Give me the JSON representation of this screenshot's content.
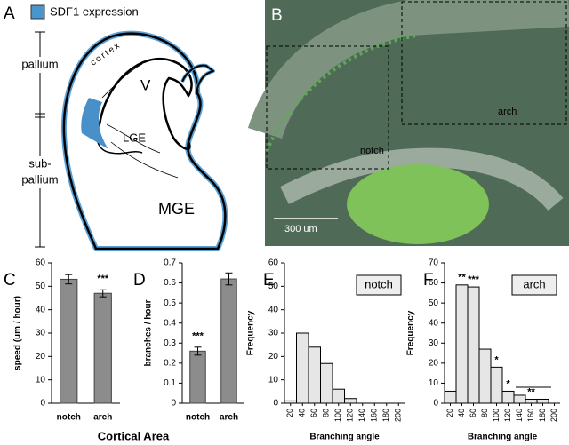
{
  "diagram": {
    "panel_label": "A",
    "legend": "SDF1 expression",
    "pallium": "pallium",
    "sub1": "sub-",
    "sub2": "pallium",
    "cortex": "cortex",
    "ventricle": "V",
    "lge": "LGE",
    "mge": "MGE"
  },
  "image": {
    "panel_label": "B",
    "notch": "notch",
    "arch": "arch",
    "scale": "300 um"
  },
  "shared_xlabel": "Cortical Area",
  "chart_data": [
    {
      "type": "bar",
      "panel_label": "C",
      "categories": [
        "notch",
        "arch"
      ],
      "values": [
        53,
        47
      ],
      "errors": [
        2,
        1.5
      ],
      "annotations": [
        null,
        "***"
      ],
      "color": "#8c8c8c",
      "ylabel": "speed (um / hour)",
      "ylim": [
        0,
        60
      ],
      "yticks": [
        0,
        10,
        20,
        30,
        40,
        50,
        60
      ]
    },
    {
      "type": "bar",
      "panel_label": "D",
      "categories": [
        "notch",
        "arch"
      ],
      "values": [
        0.26,
        0.62
      ],
      "errors": [
        0.02,
        0.03
      ],
      "annotations": [
        "***",
        null
      ],
      "color": "#8c8c8c",
      "ylabel": "branches / hour",
      "ylim": [
        0,
        0.7
      ],
      "yticks": [
        0,
        0.1,
        0.2,
        0.3,
        0.4,
        0.5,
        0.6,
        0.7
      ]
    },
    {
      "type": "histogram",
      "panel_label": "E",
      "bins": [
        10,
        30,
        50,
        70,
        90,
        110,
        130,
        150,
        170,
        190,
        210
      ],
      "series": [
        {
          "name": "notch",
          "color": "#e6e6e6",
          "values": [
            1,
            30,
            24,
            17,
            6,
            2,
            0,
            0,
            0,
            0
          ]
        }
      ],
      "annotations": [
        null,
        null,
        null,
        null,
        null,
        null,
        null,
        null,
        null,
        null
      ],
      "legend": "upper right",
      "xlabel": "Branching angle",
      "ylabel": "Frequency",
      "xlim": [
        10,
        210
      ],
      "xticks": [
        20,
        40,
        60,
        80,
        100,
        120,
        140,
        160,
        180,
        200
      ],
      "ylim": [
        0,
        60
      ],
      "yticks": [
        0,
        10,
        20,
        30,
        40,
        50,
        60
      ]
    },
    {
      "type": "histogram",
      "panel_label": "F",
      "bins": [
        10,
        30,
        50,
        70,
        90,
        110,
        130,
        150,
        170,
        190,
        210
      ],
      "series": [
        {
          "name": "arch",
          "color": "#e6e6e6",
          "values": [
            6,
            59,
            58,
            27,
            18,
            6,
            4,
            2,
            2,
            0
          ]
        }
      ],
      "annotations": [
        null,
        "**",
        "***",
        null,
        "*",
        "*",
        null,
        "**",
        null,
        null
      ],
      "legend": "upper right",
      "xlabel": "Branching angle",
      "ylabel": "Frequency",
      "xlim": [
        10,
        210
      ],
      "xticks": [
        20,
        40,
        60,
        80,
        100,
        120,
        140,
        160,
        180,
        200
      ],
      "ylim": [
        0,
        70
      ],
      "yticks": [
        0,
        10,
        20,
        30,
        40,
        50,
        60,
        70
      ]
    }
  ]
}
